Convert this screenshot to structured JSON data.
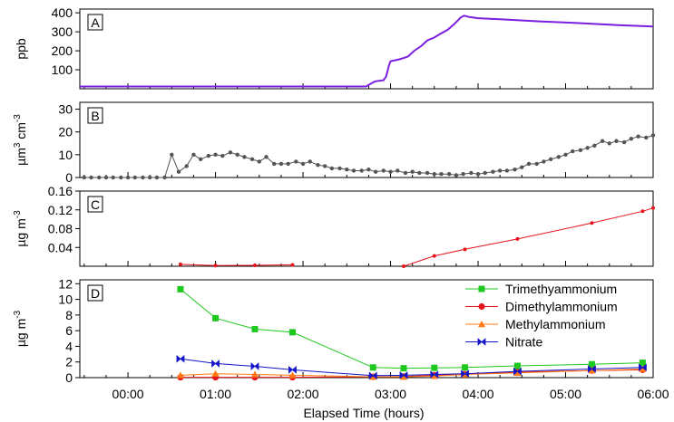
{
  "chart_data": {
    "type": "line",
    "xlabel": "Elapsed Time (hours)",
    "x_ticks": [
      "00:00",
      "01:00",
      "02:00",
      "03:00",
      "04:00",
      "05:00",
      "06:00"
    ],
    "xlim_hours": [
      -0.55,
      6.0
    ],
    "panels": [
      {
        "id": "A",
        "label": "A",
        "ylabel": "ppb",
        "ylabel_parts": [
          "ppb"
        ],
        "ylim": [
          0,
          420
        ],
        "yticks": [
          100,
          200,
          300,
          400
        ],
        "series": [
          {
            "color": "#7a1fe0",
            "markers": false,
            "x": [
              -0.55,
              2.72,
              2.78,
              2.82,
              2.87,
              2.92,
              2.95,
              2.98,
              3.0,
              3.05,
              3.1,
              3.15,
              3.2,
              3.27,
              3.35,
              3.42,
              3.5,
              3.58,
              3.65,
              3.72,
              3.77,
              3.8,
              3.84,
              3.9,
              4.0,
              4.3,
              4.7,
              5.2,
              5.6,
              6.0
            ],
            "y": [
              12,
              12,
              28,
              38,
              42,
              45,
              65,
              120,
              145,
              150,
              155,
              162,
              170,
              200,
              225,
              255,
              270,
              292,
              310,
              338,
              360,
              375,
              385,
              378,
              372,
              365,
              355,
              345,
              335,
              328
            ]
          }
        ]
      },
      {
        "id": "B",
        "label": "B",
        "ylabel": "µm3 cm-3",
        "ylabel_parts": [
          "µm",
          "3",
          " cm",
          "-3"
        ],
        "ylim": [
          0,
          33
        ],
        "yticks": [
          0,
          10,
          20,
          30
        ],
        "series": [
          {
            "color": "#555555",
            "markers": true,
            "marker": "dot",
            "x": [
              -0.5,
              -0.42,
              -0.33,
              -0.25,
              -0.17,
              -0.08,
              0.0,
              0.08,
              0.17,
              0.25,
              0.33,
              0.42,
              0.5,
              0.58,
              0.67,
              0.75,
              0.83,
              0.92,
              1.0,
              1.08,
              1.17,
              1.25,
              1.33,
              1.42,
              1.5,
              1.58,
              1.67,
              1.75,
              1.83,
              1.92,
              2.0,
              2.08,
              2.17,
              2.25,
              2.33,
              2.42,
              2.5,
              2.58,
              2.67,
              2.75,
              2.83,
              2.92,
              3.0,
              3.08,
              3.17,
              3.25,
              3.33,
              3.42,
              3.5,
              3.58,
              3.67,
              3.75,
              3.83,
              3.92,
              4.0,
              4.08,
              4.17,
              4.25,
              4.33,
              4.42,
              4.5,
              4.58,
              4.67,
              4.75,
              4.83,
              4.92,
              5.0,
              5.08,
              5.17,
              5.25,
              5.33,
              5.42,
              5.5,
              5.58,
              5.67,
              5.75,
              5.83,
              5.92,
              6.0
            ],
            "y": [
              0,
              0,
              0,
              0,
              0,
              0,
              0,
              0,
              0,
              0,
              0,
              0,
              10,
              2.5,
              5,
              10,
              8,
              9.5,
              10,
              9.5,
              11,
              10,
              9,
              8,
              7,
              9,
              6,
              6,
              6,
              7,
              6,
              7,
              5.5,
              5,
              4,
              4,
              3.5,
              3,
              3,
              3.5,
              2.5,
              3,
              2.5,
              3,
              2,
              2.5,
              2,
              2,
              1.5,
              1.5,
              1.5,
              1,
              1.5,
              2,
              1.5,
              2,
              2.5,
              3,
              3,
              3.5,
              4.5,
              6,
              6,
              7,
              8,
              9,
              10,
              11.5,
              12,
              13,
              14,
              16,
              15,
              16,
              15.5,
              17,
              18,
              17.5,
              18.5
            ]
          }
        ]
      },
      {
        "id": "C",
        "label": "C",
        "ylabel": "µg m-3",
        "ylabel_parts": [
          "µg m",
          "-3"
        ],
        "ylim": [
          0,
          0.16
        ],
        "yticks": [
          0.04,
          0.08,
          0.12,
          0.16
        ],
        "series": [
          {
            "color": "#e8141c",
            "markers": true,
            "marker": "smalldot",
            "segments": [
              {
                "x": [
                  0.6,
                  1.0,
                  1.45,
                  1.88
                ],
                "y": [
                  0.004,
                  0.0015,
                  0.002,
                  0.003
                ]
              },
              {
                "x": [
                  3.15,
                  3.5,
                  3.85,
                  4.45,
                  5.3,
                  5.88,
                  6.0
                ],
                "y": [
                  0.0,
                  0.022,
                  0.036,
                  0.058,
                  0.092,
                  0.117,
                  0.124
                ]
              }
            ]
          }
        ]
      },
      {
        "id": "D",
        "label": "D",
        "ylabel": "µg m-3",
        "ylabel_parts": [
          "µg m",
          "-3"
        ],
        "ylim": [
          0,
          12.5
        ],
        "yticks": [
          0,
          2,
          4,
          6,
          8,
          10,
          12
        ],
        "legend_position": "top-right",
        "series": [
          {
            "name": "Trimethyammonium",
            "color": "#1ec81e",
            "marker": "square",
            "x": [
              0.6,
              1.0,
              1.45,
              1.88,
              2.8,
              3.15,
              3.5,
              3.85,
              4.45,
              5.3,
              5.88
            ],
            "y": [
              11.3,
              7.6,
              6.2,
              5.8,
              1.3,
              1.2,
              1.25,
              1.3,
              1.5,
              1.7,
              1.9
            ]
          },
          {
            "name": "Dimethylammonium",
            "color": "#e8141c",
            "marker": "circle",
            "x": [
              0.6,
              1.0,
              1.45,
              1.88,
              2.8,
              3.15,
              3.5,
              3.85,
              4.45,
              5.3,
              5.88
            ],
            "y": [
              0.05,
              0.05,
              0.05,
              0.05,
              0.1,
              0.15,
              0.3,
              0.45,
              0.7,
              0.9,
              1.0
            ]
          },
          {
            "name": "Methylammonium",
            "color": "#ff7a14",
            "marker": "triangle",
            "x": [
              0.6,
              1.0,
              1.45,
              1.88,
              2.8,
              3.15,
              3.5,
              3.85,
              4.45,
              5.3,
              5.88
            ],
            "y": [
              0.3,
              0.5,
              0.4,
              0.3,
              0.1,
              0.1,
              0.2,
              0.4,
              0.6,
              0.9,
              1.1
            ]
          },
          {
            "name": "Nitrate",
            "color": "#1414c8",
            "marker": "bowtie",
            "x": [
              0.6,
              1.0,
              1.45,
              1.88,
              2.8,
              3.15,
              3.5,
              3.85,
              4.45,
              5.3,
              5.88
            ],
            "y": [
              2.4,
              1.8,
              1.45,
              1.0,
              0.25,
              0.3,
              0.4,
              0.5,
              0.8,
              1.1,
              1.3
            ]
          }
        ]
      }
    ]
  }
}
